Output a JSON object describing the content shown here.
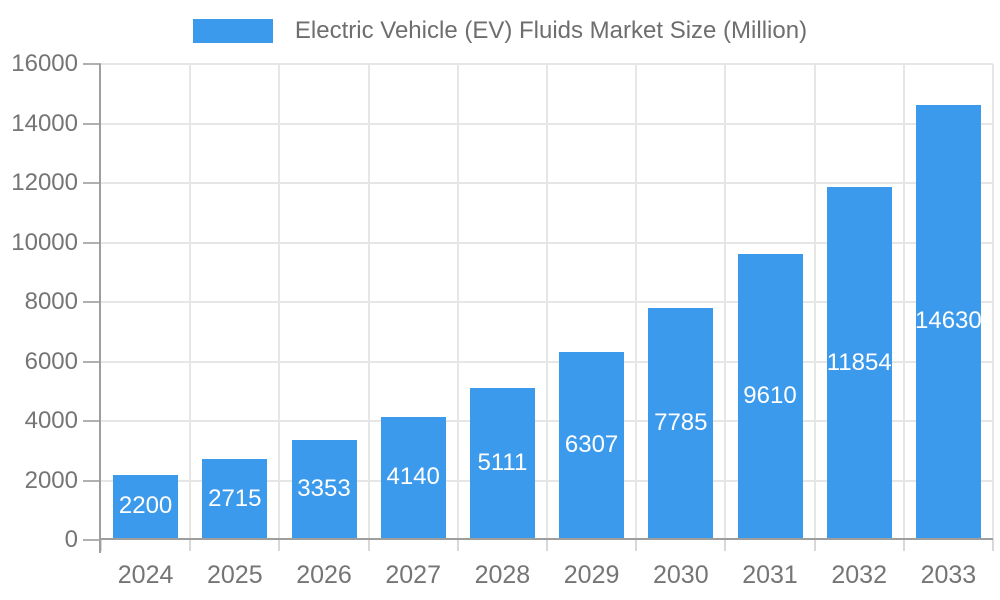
{
  "chart_data": {
    "type": "bar",
    "title": "Electric Vehicle (EV) Fluids Market Size (Million)",
    "legend": {
      "position": "top",
      "items": [
        {
          "label": "Electric Vehicle (EV) Fluids Market Size (Million)",
          "color": "#3c9aec"
        }
      ]
    },
    "categories": [
      "2024",
      "2025",
      "2026",
      "2027",
      "2028",
      "2029",
      "2030",
      "2031",
      "2032",
      "2033"
    ],
    "series": [
      {
        "name": "Electric Vehicle (EV) Fluids Market Size (Million)",
        "values": [
          2200,
          2715,
          3353,
          4140,
          5111,
          6307,
          7785,
          9610,
          11854,
          14630
        ]
      }
    ],
    "value_labels_shown": true,
    "value_label_color": "#ffffff",
    "xlabel": "",
    "ylabel": "",
    "ylim": [
      0,
      16000
    ],
    "ytick_step": 2000,
    "ytick_labels": [
      "0",
      "2000",
      "4000",
      "6000",
      "8000",
      "10000",
      "12000",
      "14000",
      "16000"
    ],
    "grid": true,
    "bar_color": "#3c9aec",
    "axis_text_color": "#757575"
  }
}
